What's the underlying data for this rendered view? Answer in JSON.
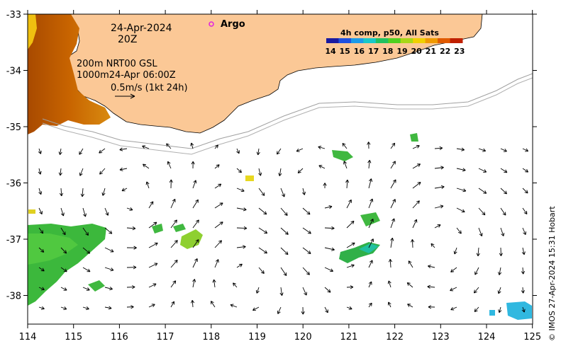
{
  "map": {
    "date_text": "24-Apr-2024",
    "time_text": "20Z",
    "argo_label": "Argo",
    "info_lines": [
      "200m  NRT00 GSL",
      "1000m24-Apr 06:00Z",
      "0.5m/s (1kt 24h)"
    ],
    "colorbar": {
      "title": "4h comp, p50, All Sats",
      "ticks": [
        "14",
        "15",
        "16",
        "17",
        "18",
        "19",
        "20",
        "21",
        "22",
        "23"
      ],
      "colors": [
        "#1a1aa0",
        "#1e50e0",
        "#1c9ae8",
        "#18c8c8",
        "#20c060",
        "#50d020",
        "#a8d818",
        "#f0d000",
        "#f09a00",
        "#e05a00",
        "#c02000"
      ]
    },
    "x_axis": {
      "ticks": [
        "114",
        "115",
        "116",
        "117",
        "118",
        "119",
        "120",
        "121",
        "122",
        "123",
        "124",
        "125"
      ],
      "range": [
        114,
        125
      ]
    },
    "y_axis": {
      "ticks": [
        "-33",
        "-34",
        "-35",
        "-36",
        "-37",
        "-38"
      ],
      "range": [
        -33,
        -38.5
      ]
    },
    "credit": "© IMOS 27-Apr-2024 15:31 Hobart",
    "colors": {
      "land": "#fbc896",
      "frame": "#000000",
      "argo_marker": "#e020e0",
      "bathy": "#a0a0a0"
    }
  }
}
